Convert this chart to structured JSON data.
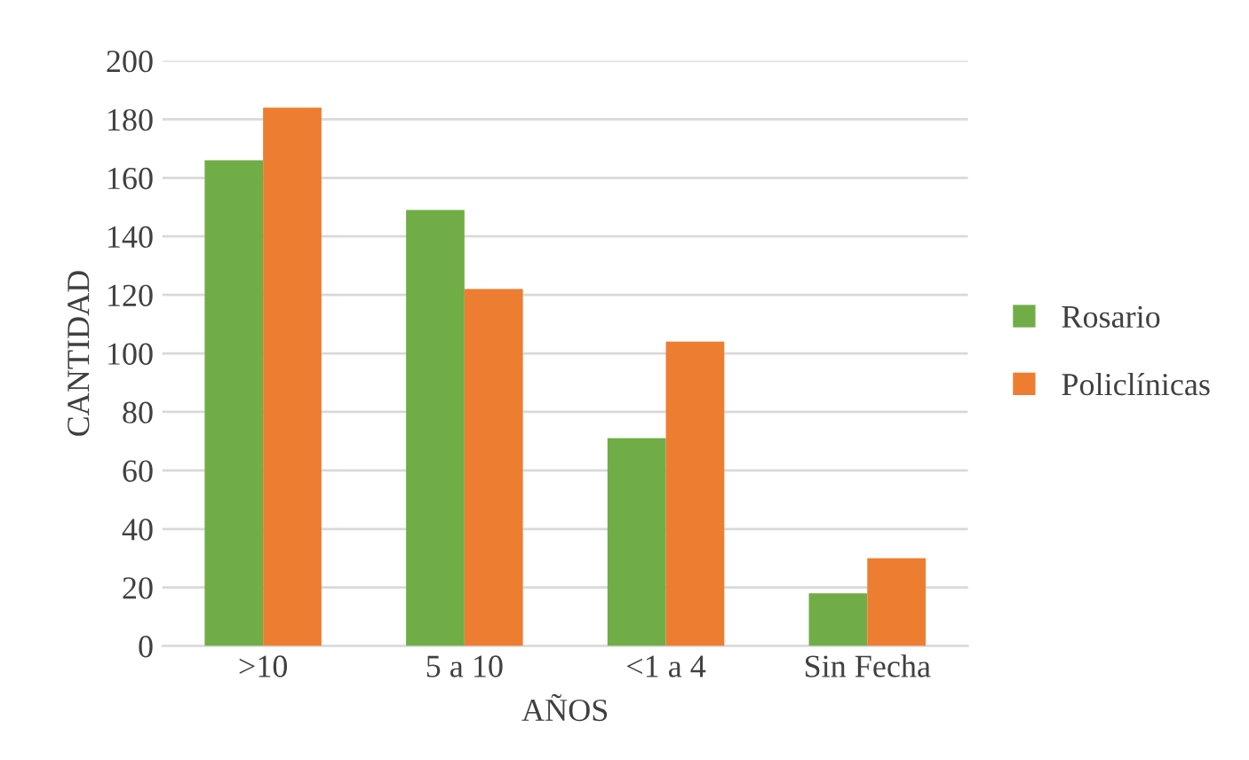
{
  "chart_data": {
    "type": "bar",
    "xlabel": "AÑOS",
    "ylabel": "CANTIDAD",
    "categories": [
      ">10",
      "5 a 10",
      "<1 a 4",
      "Sin Fecha"
    ],
    "series": [
      {
        "name": "Rosario",
        "color": "#70ad47",
        "values": [
          166,
          149,
          71,
          18
        ]
      },
      {
        "name": "Policlínicas",
        "color": "#ed7d31",
        "values": [
          184,
          122,
          104,
          30
        ]
      }
    ],
    "ylim": [
      0,
      200
    ],
    "yticks": [
      0,
      20,
      40,
      60,
      80,
      100,
      120,
      140,
      160,
      180,
      200
    ],
    "grid": "y",
    "legend": "right"
  }
}
